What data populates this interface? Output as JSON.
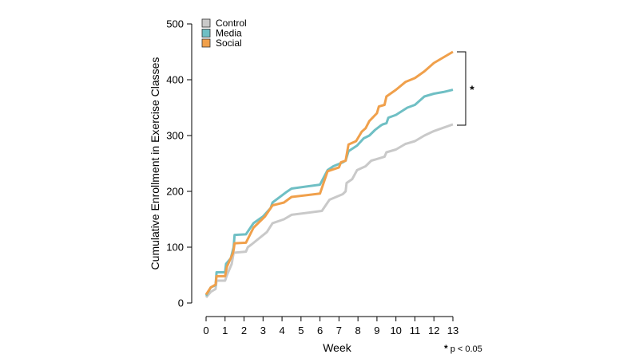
{
  "chart_data": {
    "type": "line",
    "xlabel": "Week",
    "ylabel": "Cumulative Enrollment in Exercise Classes",
    "xlim": [
      0,
      13
    ],
    "ylim": [
      0,
      500
    ],
    "x_ticks": [
      "0",
      "1",
      "2",
      "3",
      "4",
      "5",
      "6",
      "7",
      "8",
      "9",
      "10",
      "11",
      "12",
      "13"
    ],
    "y_ticks": [
      "0",
      "100",
      "200",
      "300",
      "400",
      "500"
    ],
    "legend_position": "top-left",
    "colors": {
      "Control": "#c9c9c9",
      "Media": "#6fbfc4",
      "Social": "#f0a04b"
    },
    "series": [
      {
        "name": "Control",
        "points": [
          [
            0,
            10
          ],
          [
            0.25,
            20
          ],
          [
            0.5,
            25
          ],
          [
            0.55,
            40
          ],
          [
            1.0,
            40
          ],
          [
            1.1,
            50
          ],
          [
            1.35,
            70
          ],
          [
            1.45,
            90
          ],
          [
            2.1,
            92
          ],
          [
            2.2,
            100
          ],
          [
            2.4,
            105
          ],
          [
            3.2,
            127
          ],
          [
            3.5,
            143
          ],
          [
            4.1,
            150
          ],
          [
            4.5,
            158
          ],
          [
            6.1,
            165
          ],
          [
            6.5,
            185
          ],
          [
            7.2,
            195
          ],
          [
            7.35,
            200
          ],
          [
            7.4,
            215
          ],
          [
            7.7,
            222
          ],
          [
            7.95,
            238
          ],
          [
            8.4,
            245
          ],
          [
            8.7,
            255
          ],
          [
            9.0,
            258
          ],
          [
            9.4,
            262
          ],
          [
            9.5,
            270
          ],
          [
            10.0,
            275
          ],
          [
            10.5,
            285
          ],
          [
            11.0,
            290
          ],
          [
            11.5,
            300
          ],
          [
            12.0,
            308
          ],
          [
            12.5,
            314
          ],
          [
            13.0,
            320
          ]
        ]
      },
      {
        "name": "Media",
        "points": [
          [
            0,
            13
          ],
          [
            0.25,
            28
          ],
          [
            0.5,
            32
          ],
          [
            0.55,
            55
          ],
          [
            1.0,
            55
          ],
          [
            1.05,
            70
          ],
          [
            1.3,
            80
          ],
          [
            1.45,
            100
          ],
          [
            1.5,
            122
          ],
          [
            2.1,
            123
          ],
          [
            2.5,
            143
          ],
          [
            3.0,
            155
          ],
          [
            3.4,
            170
          ],
          [
            3.5,
            180
          ],
          [
            4.2,
            198
          ],
          [
            4.5,
            205
          ],
          [
            6.0,
            212
          ],
          [
            6.4,
            238
          ],
          [
            6.7,
            245
          ],
          [
            7.2,
            252
          ],
          [
            7.35,
            255
          ],
          [
            7.5,
            272
          ],
          [
            7.95,
            282
          ],
          [
            8.3,
            295
          ],
          [
            8.6,
            300
          ],
          [
            8.9,
            310
          ],
          [
            9.2,
            318
          ],
          [
            9.3,
            320
          ],
          [
            9.5,
            322
          ],
          [
            9.6,
            332
          ],
          [
            10.0,
            337
          ],
          [
            10.6,
            350
          ],
          [
            11.0,
            355
          ],
          [
            11.5,
            370
          ],
          [
            12.0,
            375
          ],
          [
            12.5,
            378
          ],
          [
            13.0,
            382
          ]
        ]
      },
      {
        "name": "Social",
        "points": [
          [
            0,
            15
          ],
          [
            0.25,
            28
          ],
          [
            0.5,
            33
          ],
          [
            0.55,
            48
          ],
          [
            1.0,
            48
          ],
          [
            1.1,
            65
          ],
          [
            1.4,
            88
          ],
          [
            1.45,
            95
          ],
          [
            1.5,
            107
          ],
          [
            2.1,
            108
          ],
          [
            2.5,
            135
          ],
          [
            3.1,
            155
          ],
          [
            3.5,
            175
          ],
          [
            4.1,
            180
          ],
          [
            4.5,
            190
          ],
          [
            6.0,
            196
          ],
          [
            6.4,
            236
          ],
          [
            7.0,
            243
          ],
          [
            7.1,
            252
          ],
          [
            7.35,
            255
          ],
          [
            7.5,
            284
          ],
          [
            7.9,
            290
          ],
          [
            8.2,
            307
          ],
          [
            8.4,
            313
          ],
          [
            8.6,
            326
          ],
          [
            9.0,
            340
          ],
          [
            9.1,
            352
          ],
          [
            9.4,
            355
          ],
          [
            9.5,
            370
          ],
          [
            10.0,
            382
          ],
          [
            10.5,
            396
          ],
          [
            11.0,
            403
          ],
          [
            11.5,
            415
          ],
          [
            12.0,
            430
          ],
          [
            12.5,
            440
          ],
          [
            13.0,
            450
          ]
        ]
      }
    ],
    "annotation": {
      "symbol": "*",
      "note_mark": "*",
      "note_text": " p < 0.05"
    }
  }
}
